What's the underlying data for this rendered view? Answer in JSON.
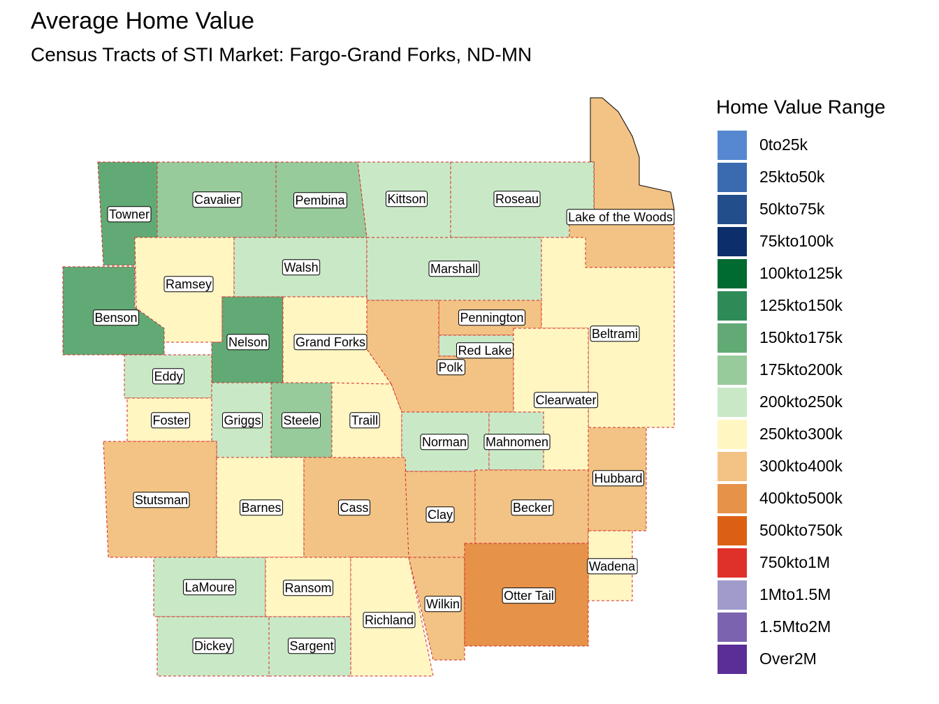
{
  "title": "Average Home Value",
  "subtitle": "Census Tracts of STI Market: Fargo-Grand Forks, ND-MN",
  "legend": {
    "title": "Home Value Range",
    "items": [
      {
        "label": "0to25k",
        "color": "#5588d0"
      },
      {
        "label": "25kto50k",
        "color": "#3a6ab0"
      },
      {
        "label": "50kto75k",
        "color": "#234e8c"
      },
      {
        "label": "75kto100k",
        "color": "#0c2f6b"
      },
      {
        "label": "100kto125k",
        "color": "#006b30"
      },
      {
        "label": "125kto150k",
        "color": "#2e8b57"
      },
      {
        "label": "150kto175k",
        "color": "#62aa75"
      },
      {
        "label": "175kto200k",
        "color": "#98cb9b"
      },
      {
        "label": "200kto250k",
        "color": "#c9e9c6"
      },
      {
        "label": "250kto300k",
        "color": "#fff6c2"
      },
      {
        "label": "300kto400k",
        "color": "#f2c384"
      },
      {
        "label": "400kto500k",
        "color": "#e69248"
      },
      {
        "label": "500kto750k",
        "color": "#dc6014"
      },
      {
        "label": "750kto1M",
        "color": "#e0302a"
      },
      {
        "label": "1Mto1.5M",
        "color": "#a09bcb"
      },
      {
        "label": "1.5Mto2M",
        "color": "#7c63b0"
      },
      {
        "label": "Over2M",
        "color": "#5a2e96"
      }
    ]
  },
  "counties": [
    {
      "label": "Towner",
      "color": "#62aa75"
    },
    {
      "label": "Cavalier",
      "color": "#98cb9b"
    },
    {
      "label": "Pembina",
      "color": "#98cb9b"
    },
    {
      "label": "Kittson",
      "color": "#c9e9c6"
    },
    {
      "label": "Roseau",
      "color": "#c9e9c6"
    },
    {
      "label": "Lake of the Woods",
      "color": "#f2c384"
    },
    {
      "label": "Ramsey",
      "color": "#fff6c2"
    },
    {
      "label": "Benson",
      "color": "#62aa75"
    },
    {
      "label": "Walsh",
      "color": "#c9e9c6"
    },
    {
      "label": "Marshall",
      "color": "#c9e9c6"
    },
    {
      "label": "Pennington",
      "color": "#f2c384"
    },
    {
      "label": "Beltrami",
      "color": "#fff6c2"
    },
    {
      "label": "Red Lake",
      "color": "#c9e9c6"
    },
    {
      "label": "Polk",
      "color": "#f2c384"
    },
    {
      "label": "Nelson",
      "color": "#62aa75"
    },
    {
      "label": "Grand Forks",
      "color": "#fff6c2"
    },
    {
      "label": "Eddy",
      "color": "#c9e9c6"
    },
    {
      "label": "Clearwater",
      "color": "#fff6c2"
    },
    {
      "label": "Foster",
      "color": "#fff6c2"
    },
    {
      "label": "Griggs",
      "color": "#c9e9c6"
    },
    {
      "label": "Steele",
      "color": "#98cb9b"
    },
    {
      "label": "Traill",
      "color": "#fff6c2"
    },
    {
      "label": "Norman",
      "color": "#c9e9c6"
    },
    {
      "label": "Mahnomen",
      "color": "#c9e9c6"
    },
    {
      "label": "Hubbard",
      "color": "#f2c384"
    },
    {
      "label": "Stutsman",
      "color": "#f2c384"
    },
    {
      "label": "Barnes",
      "color": "#fff6c2"
    },
    {
      "label": "Cass",
      "color": "#f2c384"
    },
    {
      "label": "Clay",
      "color": "#f2c384"
    },
    {
      "label": "Becker",
      "color": "#f2c384"
    },
    {
      "label": "Wadena",
      "color": "#fff6c2"
    },
    {
      "label": "LaMoure",
      "color": "#c9e9c6"
    },
    {
      "label": "Ransom",
      "color": "#fff6c2"
    },
    {
      "label": "Richland",
      "color": "#fff6c2"
    },
    {
      "label": "Wilkin",
      "color": "#f2c384"
    },
    {
      "label": "Otter Tail",
      "color": "#e69248"
    },
    {
      "label": "Dickey",
      "color": "#c9e9c6"
    },
    {
      "label": "Sargent",
      "color": "#c9e9c6"
    }
  ]
}
